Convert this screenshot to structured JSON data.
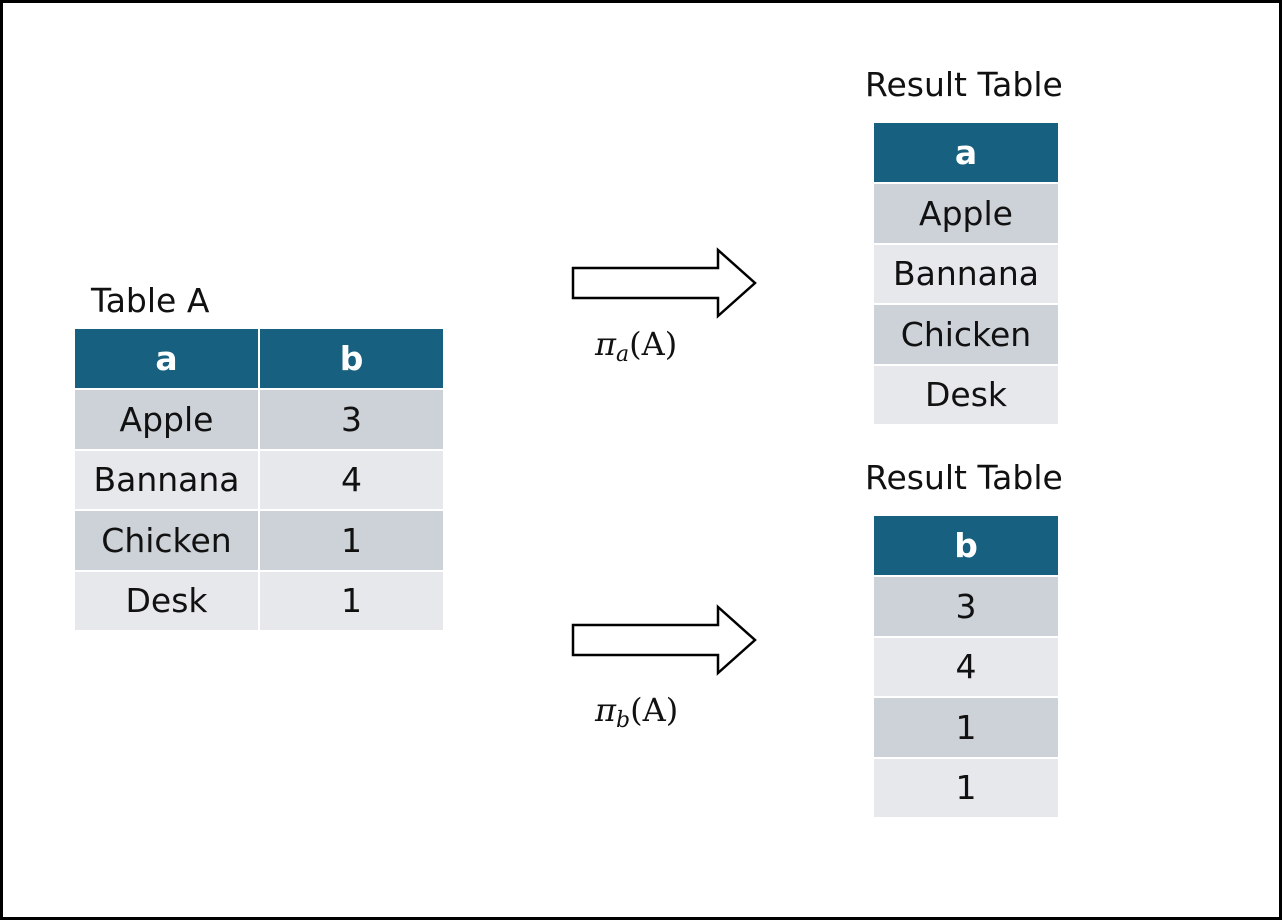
{
  "table_a": {
    "title": "Table A",
    "headers": [
      "a",
      "b"
    ],
    "rows": [
      [
        "Apple",
        "3"
      ],
      [
        "Bannana",
        "4"
      ],
      [
        "Chicken",
        "1"
      ],
      [
        "Desk",
        "1"
      ]
    ]
  },
  "result_a": {
    "title": "Result Table",
    "header": "a",
    "rows": [
      "Apple",
      "Bannana",
      "Chicken",
      "Desk"
    ]
  },
  "result_b": {
    "title": "Result Table",
    "header": "b",
    "rows": [
      "3",
      "4",
      "1",
      "1"
    ]
  },
  "projection_a": {
    "symbol": "π",
    "subscript": "a",
    "arg": "(A)"
  },
  "projection_b": {
    "symbol": "π",
    "subscript": "b",
    "arg": "(A)"
  }
}
